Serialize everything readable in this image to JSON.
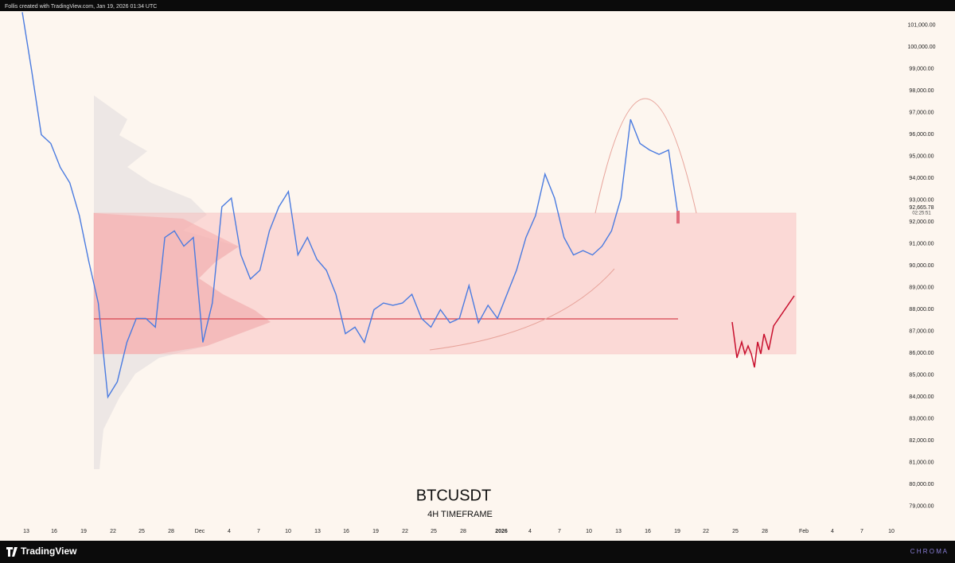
{
  "header": {
    "text": "Follis created with TradingView.com, Jan 19, 2026 01:34 UTC"
  },
  "chart_data": {
    "type": "line",
    "title": "BTCUSDT",
    "subtitle": "4H TIMEFRAME",
    "color": "#4a7be0",
    "values": [
      101600,
      98900,
      96000,
      95600,
      94500,
      93800,
      92300,
      90200,
      88300,
      84000,
      84700,
      86500,
      87600,
      87600,
      87200,
      91300,
      91600,
      90900,
      91300,
      86500,
      88300,
      92700,
      93100,
      90500,
      89400,
      89800,
      91600,
      92700,
      93400,
      90500,
      91300,
      90300,
      89800,
      88700,
      86900,
      87200,
      86500,
      88000,
      88300,
      88200,
      88300,
      88700,
      87600,
      87200,
      88000,
      87400,
      87600,
      89100,
      87400,
      88200,
      87600,
      88700,
      89800,
      91300,
      92300,
      94200,
      93100,
      91300,
      90500,
      90700,
      90500,
      90900,
      91600,
      93100,
      96700,
      95600,
      95300,
      95100,
      95300,
      92300
    ],
    "ylim": [
      78160,
      101650
    ],
    "yticks": [
      {
        "value": 101000,
        "label": "101,000.00"
      },
      {
        "value": 100000,
        "label": "100,000.00"
      },
      {
        "value": 99000,
        "label": "99,000.00"
      },
      {
        "value": 98000,
        "label": "98,000.00"
      },
      {
        "value": 97000,
        "label": "97,000.00"
      },
      {
        "value": 96000,
        "label": "96,000.00"
      },
      {
        "value": 95000,
        "label": "95,000.00"
      },
      {
        "value": 94000,
        "label": "94,000.00"
      },
      {
        "value": 93000,
        "label": "93,000.00"
      },
      {
        "value": 92000,
        "label": "92,000.00"
      },
      {
        "value": 91000,
        "label": "91,000.00"
      },
      {
        "value": 90000,
        "label": "90,000.00"
      },
      {
        "value": 89000,
        "label": "89,000.00"
      },
      {
        "value": 88000,
        "label": "88,000.00"
      },
      {
        "value": 87000,
        "label": "87,000.00"
      },
      {
        "value": 86000,
        "label": "86,000.00"
      },
      {
        "value": 85000,
        "label": "85,000.00"
      },
      {
        "value": 84000,
        "label": "84,000.00"
      },
      {
        "value": 83000,
        "label": "83,000.00"
      },
      {
        "value": 82000,
        "label": "82,000.00"
      },
      {
        "value": 81000,
        "label": "81,000.00"
      },
      {
        "value": 80000,
        "label": "80,000.00"
      },
      {
        "value": 79000,
        "label": "79,000.00"
      }
    ],
    "x_axis_labels": [
      "13",
      "16",
      "19",
      "22",
      "25",
      "28",
      "Dec",
      "4",
      "7",
      "10",
      "13",
      "16",
      "19",
      "22",
      "25",
      "28",
      "2026",
      "4",
      "7",
      "10",
      "13",
      "16",
      "19",
      "22",
      "25",
      "28",
      "Feb",
      "4",
      "7",
      "10"
    ],
    "last_price": {
      "value": 92665.78,
      "label": "92,665.78"
    },
    "countdown": "02:25:51"
  },
  "footer": {
    "brand": "TradingView",
    "right": "C H R O M A"
  }
}
